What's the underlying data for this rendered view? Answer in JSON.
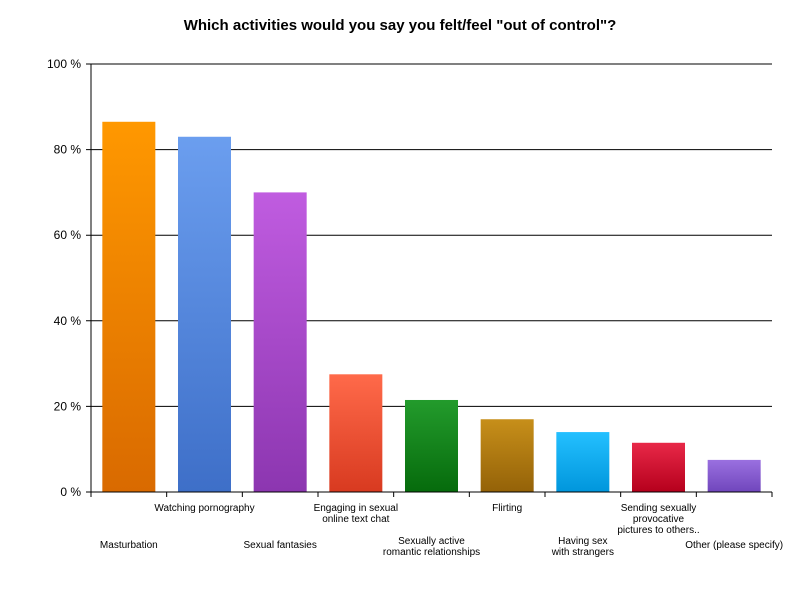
{
  "chart_data": {
    "type": "bar",
    "title": "Which activities would you say you felt/feel \"out of control\"?",
    "categories": [
      [
        "Masturbation"
      ],
      [
        "Watching pornography"
      ],
      [
        "Sexual fantasies"
      ],
      [
        "Engaging in sexual",
        "online text chat"
      ],
      [
        "Sexually active",
        "romantic relationships"
      ],
      [
        "Flirting"
      ],
      [
        "Having sex",
        "with strangers"
      ],
      [
        "Sending sexually",
        "provocative",
        "pictures to others.."
      ],
      [
        "Other (please specify)"
      ]
    ],
    "values": [
      86.5,
      83,
      70,
      27.5,
      21.5,
      17,
      14,
      11.5,
      7.5
    ],
    "colors": [
      [
        "#ff9800",
        "#d96a00"
      ],
      [
        "#6b9eef",
        "#3e6fc8"
      ],
      [
        "#c05ce0",
        "#8c36b0"
      ],
      [
        "#ff6a4a",
        "#d83a20"
      ],
      [
        "#239b2c",
        "#066b0c"
      ],
      [
        "#c78f1a",
        "#946208"
      ],
      [
        "#24c0ff",
        "#0096dc"
      ],
      [
        "#e82848",
        "#b5001c"
      ],
      [
        "#9a70e0",
        "#7046bc"
      ]
    ],
    "ylim": [
      0,
      100
    ],
    "yticks": [
      0,
      20,
      40,
      60,
      80,
      100
    ],
    "ytick_suffix": " %",
    "grid": true,
    "xlabel": "",
    "ylabel": ""
  }
}
